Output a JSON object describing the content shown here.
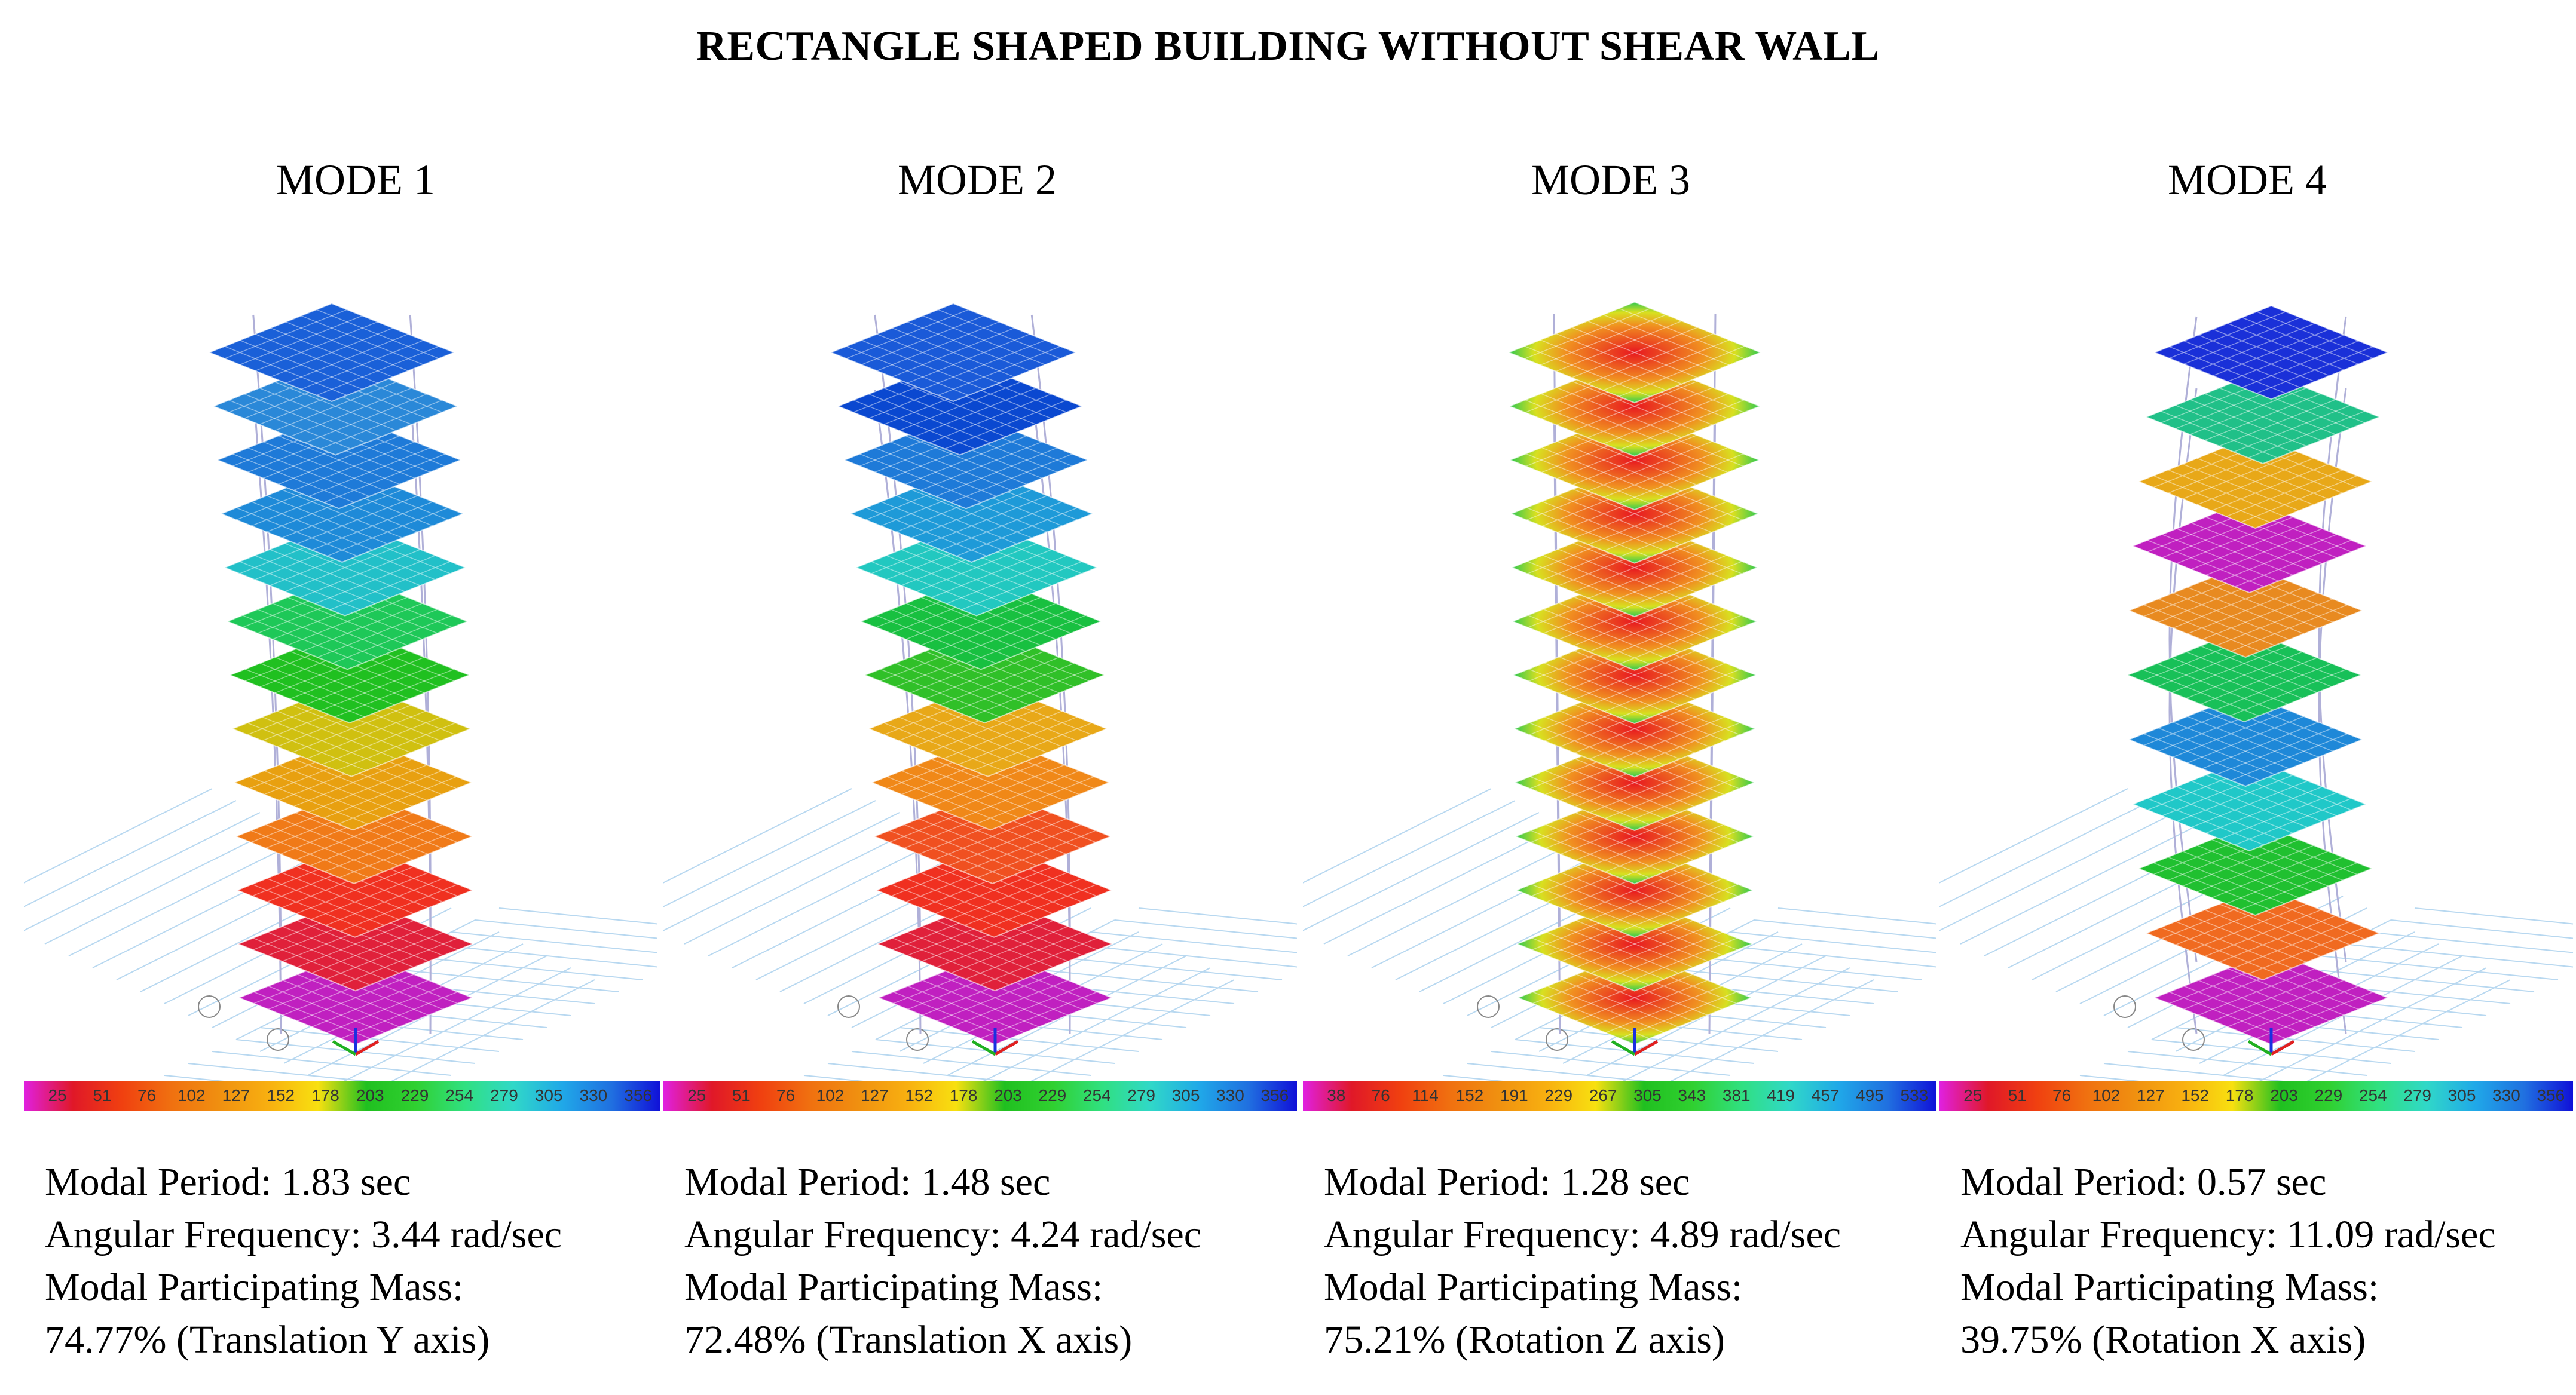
{
  "title": "RECTANGLE SHAPED BUILDING WITHOUT SHEAR WALL",
  "modes": [
    {
      "label": "MODE 1",
      "period_line": "Modal Period: 1.83 sec",
      "freq_line": "Angular Frequency: 3.44 rad/sec",
      "mass_label": "Modal Participating Mass:",
      "mass_line": "74.77% (Translation Y axis)",
      "legend_ticks": [
        "25",
        "51",
        "76",
        "102",
        "127",
        "152",
        "178",
        "203",
        "229",
        "254",
        "279",
        "305",
        "330",
        "356"
      ],
      "floor_colors": [
        "#c020c0",
        "#e0203a",
        "#f03020",
        "#f07a18",
        "#e8a010",
        "#d0c010",
        "#20c020",
        "#1ec858",
        "#22c0c8",
        "#1e8ad8",
        "#1e7ad8",
        "#2a88d8",
        "#1a60d8"
      ],
      "deform": "translate-y",
      "mode_shape": "uniform"
    },
    {
      "label": "MODE 2",
      "period_line": "Modal Period: 1.48 sec",
      "freq_line": "Angular Frequency: 4.24 rad/sec",
      "mass_label": "Modal Participating Mass:",
      "mass_line": "72.48% (Translation X axis)",
      "legend_ticks": [
        "25",
        "51",
        "76",
        "102",
        "127",
        "152",
        "178",
        "203",
        "229",
        "254",
        "279",
        "305",
        "330",
        "356"
      ],
      "floor_colors": [
        "#c020c0",
        "#e0203a",
        "#f03020",
        "#f05020",
        "#f08818",
        "#e8a818",
        "#30c028",
        "#18c040",
        "#22c8c0",
        "#1e9ad8",
        "#1e7ad8",
        "#0a48d0",
        "#1a5ad8"
      ],
      "deform": "translate-x",
      "mode_shape": "uniform"
    },
    {
      "label": "MODE 3",
      "period_line": "Modal Period: 1.28 sec",
      "freq_line": "Angular Frequency: 4.89 rad/sec",
      "mass_label": "Modal Participating Mass:",
      "mass_line": "75.21% (Rotation Z axis)",
      "legend_ticks": [
        "38",
        "76",
        "114",
        "152",
        "191",
        "229",
        "267",
        "305",
        "343",
        "381",
        "419",
        "457",
        "495",
        "533"
      ],
      "floor_colors": [
        "#c020c0",
        "#e02060",
        "#e83030",
        "#f05020",
        "#f07020",
        "#f08020",
        "#f09020",
        "#e8a020",
        "#e0b020",
        "#d8c020",
        "#c8d020",
        "#b8d828",
        "#a8e030"
      ],
      "deform": "rotation",
      "mode_shape": "radial"
    },
    {
      "label": "MODE 4",
      "period_line": "Modal Period: 0.57 sec",
      "freq_line": "Angular Frequency: 11.09 rad/sec",
      "mass_label": "Modal Participating Mass:",
      "mass_line": "39.75% (Rotation X axis)",
      "legend_ticks": [
        "25",
        "51",
        "76",
        "102",
        "127",
        "152",
        "178",
        "203",
        "229",
        "254",
        "279",
        "305",
        "330",
        "356"
      ],
      "floor_colors": [
        "#c020c0",
        "#f06a20",
        "#20c030",
        "#20c8c8",
        "#1e88d8",
        "#18c058",
        "#e88a20",
        "#c020c0",
        "#e8a818",
        "#20c088",
        "#1a30d8"
      ],
      "deform": "second-mode",
      "mode_shape": "uniform"
    }
  ],
  "legend_colors": [
    "#e020e0",
    "#e01828",
    "#f04010",
    "#f07010",
    "#f09010",
    "#f8b010",
    "#f8e010",
    "#20c020",
    "#30d030",
    "#30e080",
    "#30d8c8",
    "#20a8e8",
    "#2070e0",
    "#1010d8"
  ],
  "grid_color": "#b8d8f0",
  "frame_color": "#b0b0d8"
}
